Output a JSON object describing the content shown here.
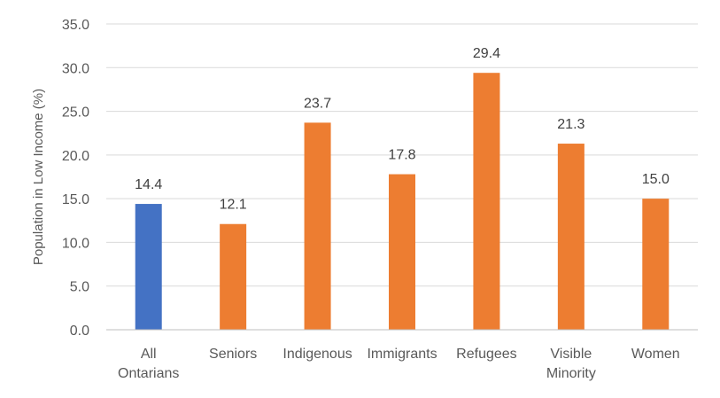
{
  "chart_data": {
    "type": "bar",
    "ylabel": "Population in Low Income (%)",
    "ylim": [
      0,
      35
    ],
    "y_ticks": [
      "0.0",
      "5.0",
      "10.0",
      "15.0",
      "20.0",
      "25.0",
      "30.0",
      "35.0"
    ],
    "grid": true,
    "categories": [
      [
        "All",
        "Ontarians"
      ],
      [
        "Seniors"
      ],
      [
        "Indigenous"
      ],
      [
        "Immigrants"
      ],
      [
        "Refugees"
      ],
      [
        "Visible",
        "Minority"
      ],
      [
        "Women"
      ]
    ],
    "values": [
      14.4,
      12.1,
      23.7,
      17.8,
      29.4,
      21.3,
      15.0
    ],
    "data_labels": [
      "14.4",
      "12.1",
      "23.7",
      "17.8",
      "29.4",
      "21.3",
      "15.0"
    ],
    "colors": [
      "#4472C4",
      "#ED7D31",
      "#ED7D31",
      "#ED7D31",
      "#ED7D31",
      "#ED7D31",
      "#ED7D31"
    ]
  }
}
